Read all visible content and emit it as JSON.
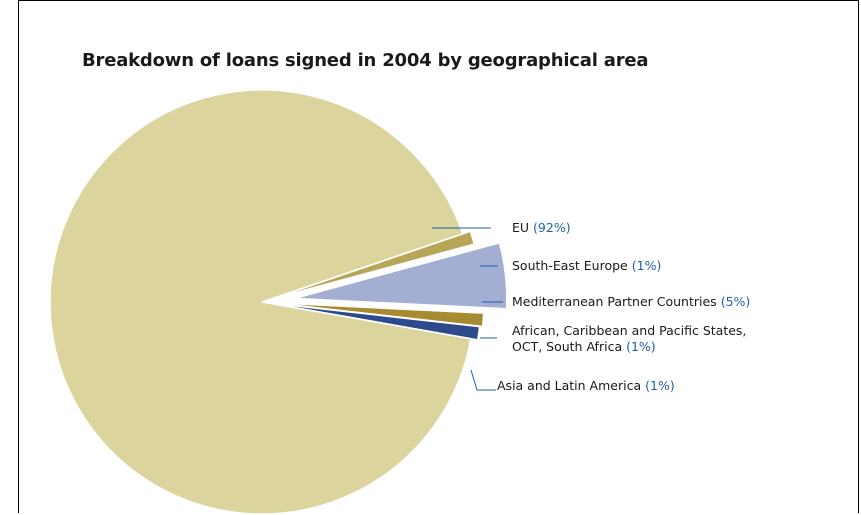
{
  "chart_data": {
    "type": "pie",
    "title": "Breakdown of loans signed in 2004 by geographical area",
    "start_angle_deg": 10,
    "exploded": "all slices except EU",
    "slices": [
      {
        "label": "Asia and Latin America",
        "line2": "",
        "pct_label": "(1%)",
        "value": 1,
        "color": "#2d4a8c"
      },
      {
        "label": "African, Caribbean and Pacific States,",
        "line2": "OCT, South Africa",
        "pct_label": "(1%)",
        "value": 1,
        "color": "#a68c2e"
      },
      {
        "label": "Mediterranean Partner Countries",
        "line2": "",
        "pct_label": "(5%)",
        "value": 5,
        "color": "#a3aed3"
      },
      {
        "label": "South-East Europe",
        "line2": "",
        "pct_label": "(1%)",
        "value": 1,
        "color": "#b8a658"
      },
      {
        "label": "EU",
        "line2": "",
        "pct_label": "(92%)",
        "value": 92,
        "color": "#dcd49d"
      }
    ]
  }
}
